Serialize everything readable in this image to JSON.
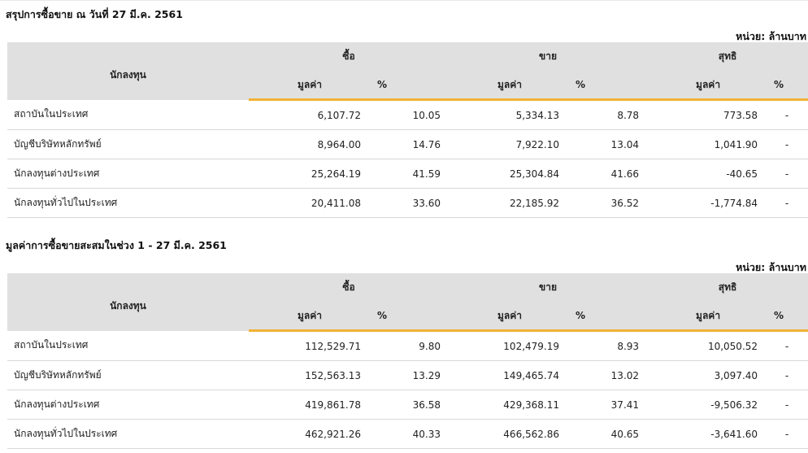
{
  "unit_label": "หน่วย: ล้านบาท",
  "tables": [
    {
      "title": "สรุปการซื้อขาย ณ วันที่ 27 มี.ค. 2561",
      "headers": {
        "investor": "นักลงทุน",
        "buy": "ซื้อ",
        "sell": "ขาย",
        "net": "สุทธิ",
        "value": "มูลค่า",
        "percent": "%"
      },
      "rows": [
        {
          "investor": "สถาบันในประเทศ",
          "buy_value": "6,107.72",
          "buy_pct": "10.05",
          "sell_value": "5,334.13",
          "sell_pct": "8.78",
          "net_value": "773.58",
          "net_pct": "-",
          "net_sign": "pos"
        },
        {
          "investor": "บัญชีบริษัทหลักทรัพย์",
          "buy_value": "8,964.00",
          "buy_pct": "14.76",
          "sell_value": "7,922.10",
          "sell_pct": "13.04",
          "net_value": "1,041.90",
          "net_pct": "-",
          "net_sign": "pos"
        },
        {
          "investor": "นักลงทุนต่างประเทศ",
          "buy_value": "25,264.19",
          "buy_pct": "41.59",
          "sell_value": "25,304.84",
          "sell_pct": "41.66",
          "net_value": "-40.65",
          "net_pct": "-",
          "net_sign": "neg"
        },
        {
          "investor": "นักลงทุนทั่วไปในประเทศ",
          "buy_value": "20,411.08",
          "buy_pct": "33.60",
          "sell_value": "22,185.92",
          "sell_pct": "36.52",
          "net_value": "-1,774.84",
          "net_pct": "-",
          "net_sign": "neg"
        }
      ]
    },
    {
      "title": "มูลค่าการซื้อขายสะสมในช่วง 1 - 27 มี.ค. 2561",
      "headers": {
        "investor": "นักลงทุน",
        "buy": "ซื้อ",
        "sell": "ขาย",
        "net": "สุทธิ",
        "value": "มูลค่า",
        "percent": "%"
      },
      "rows": [
        {
          "investor": "สถาบันในประเทศ",
          "buy_value": "112,529.71",
          "buy_pct": "9.80",
          "sell_value": "102,479.19",
          "sell_pct": "8.93",
          "net_value": "10,050.52",
          "net_pct": "-",
          "net_sign": "pos"
        },
        {
          "investor": "บัญชีบริษัทหลักทรัพย์",
          "buy_value": "152,563.13",
          "buy_pct": "13.29",
          "sell_value": "149,465.74",
          "sell_pct": "13.02",
          "net_value": "3,097.40",
          "net_pct": "-",
          "net_sign": "pos"
        },
        {
          "investor": "นักลงทุนต่างประเทศ",
          "buy_value": "419,861.78",
          "buy_pct": "36.58",
          "sell_value": "429,368.11",
          "sell_pct": "37.41",
          "net_value": "-9,506.32",
          "net_pct": "-",
          "net_sign": "neg"
        },
        {
          "investor": "นักลงทุนทั่วไปในประเทศ",
          "buy_value": "462,921.26",
          "buy_pct": "40.33",
          "sell_value": "466,562.86",
          "sell_pct": "40.65",
          "net_value": "-3,641.60",
          "net_pct": "-",
          "net_sign": "neg"
        }
      ]
    }
  ],
  "colors": {
    "positive": "#2e8b2e",
    "negative": "#e02020",
    "header_bg": "#e0e0e0",
    "accent_underline": "#f1b235"
  }
}
